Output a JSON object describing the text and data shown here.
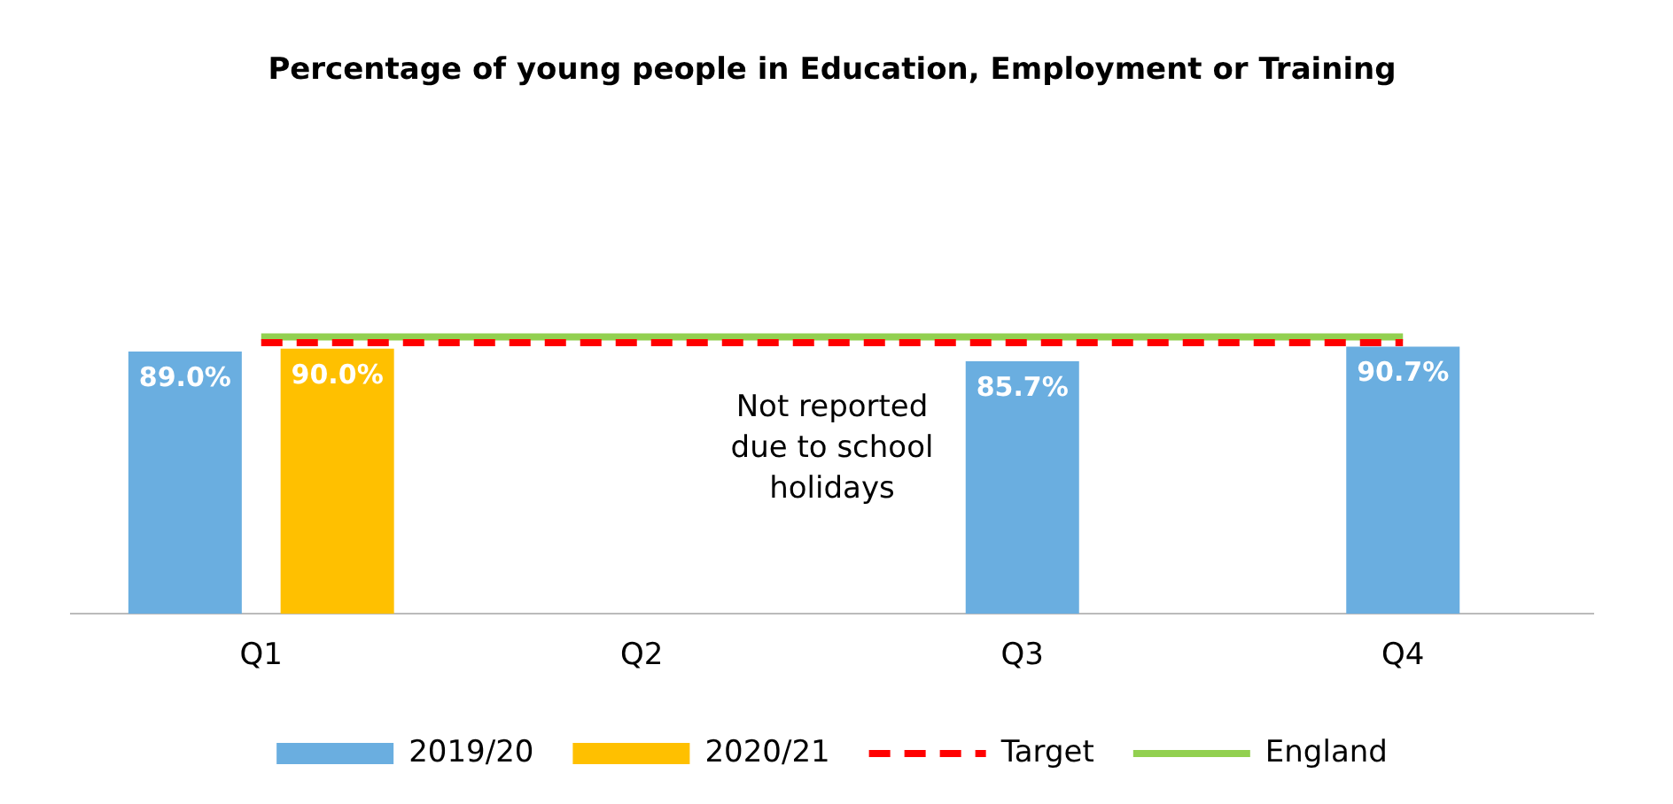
{
  "chart_data": {
    "type": "bar",
    "title": "Percentage of young people in Education, Employment or Training",
    "categories": [
      "Q1",
      "Q2",
      "Q3",
      "Q4"
    ],
    "series": [
      {
        "name": "2019/20",
        "color": "#6aaee0",
        "values": [
          89.0,
          null,
          85.7,
          90.7
        ],
        "value_labels": [
          "89.0%",
          null,
          "85.7%",
          "90.7%"
        ]
      },
      {
        "name": "2020/21",
        "color": "#ffc000",
        "values": [
          90.0,
          null,
          null,
          null
        ],
        "value_labels": [
          "90.0%",
          null,
          null,
          null
        ]
      },
      {
        "name": "Target",
        "type": "line",
        "color": "#ff0000",
        "line_style": "dashed",
        "values": [
          92,
          92,
          92,
          92
        ]
      },
      {
        "name": "England",
        "type": "line",
        "color": "#92d050",
        "line_style": "solid",
        "values": [
          94,
          94,
          94,
          94
        ]
      }
    ],
    "tick_labels": "x",
    "grid": false,
    "legend": "bottom",
    "marker": "none",
    "annotations": [
      "Not reported due to school holidays"
    ]
  }
}
